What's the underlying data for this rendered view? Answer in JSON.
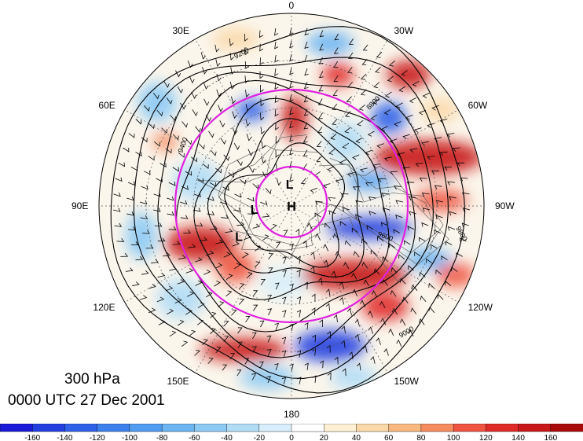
{
  "title": {
    "level": "300 hPa",
    "datetime": "0000 UTC 27 Dec 2001"
  },
  "map": {
    "projection": "north-polar-stereographic",
    "longitude_labels": [
      "0",
      "30W",
      "60W",
      "90W",
      "120W",
      "150W",
      "180",
      "150E",
      "120E",
      "90E",
      "60E",
      "30E"
    ],
    "pressure_centers": [
      {
        "label": "H",
        "lon": 0,
        "lat": 90
      },
      {
        "label": "L",
        "lon": 5,
        "lat": 77
      },
      {
        "label": "L",
        "lon": 95,
        "lat": 68
      },
      {
        "label": "L",
        "lon": 120,
        "lat": 55
      }
    ],
    "height_contour_labels": [
      "9200",
      "9400",
      "9600",
      "9800",
      "9000",
      "8800"
    ],
    "contour_color": "#000000",
    "circle_color": "#e020e0"
  },
  "colorbar": {
    "tick_labels": [
      "-160",
      "-140",
      "-120",
      "-100",
      "-80",
      "-60",
      "-40",
      "-20",
      "0",
      "20",
      "40",
      "60",
      "80",
      "100",
      "120",
      "140",
      "160"
    ],
    "colors": [
      "#1a1ad8",
      "#2240e0",
      "#2e60e8",
      "#3c80ec",
      "#509cf0",
      "#6cb4f2",
      "#8ccaf4",
      "#b0dcf6",
      "#d8eefa",
      "#ffffff",
      "#fdf0d4",
      "#fbd8a8",
      "#f8b880",
      "#f48c60",
      "#ee5440",
      "#e02a28",
      "#c81818",
      "#a80a0a"
    ]
  }
}
